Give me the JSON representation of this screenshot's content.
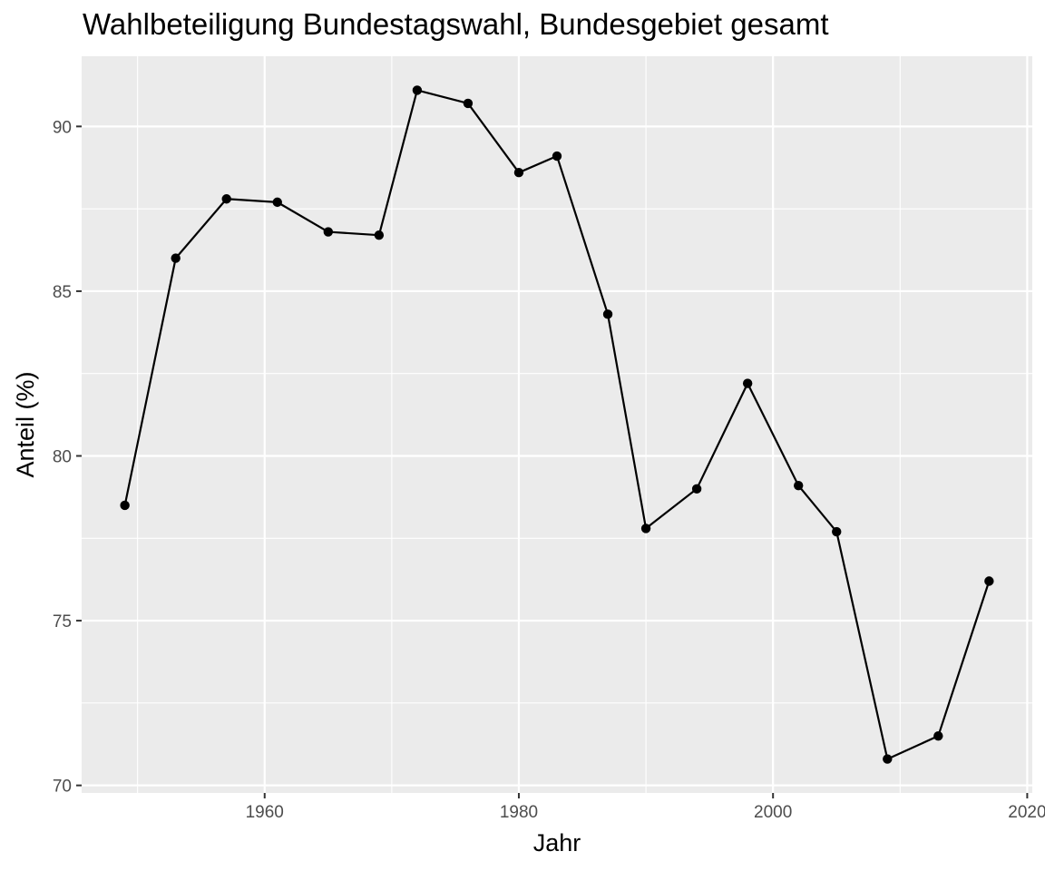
{
  "chart_data": {
    "type": "line",
    "title": "Wahlbeteiligung Bundestagswahl, Bundesgebiet gesamt",
    "xlabel": "Jahr",
    "ylabel": "Anteil (%)",
    "x": [
      1949,
      1953,
      1957,
      1961,
      1965,
      1969,
      1972,
      1976,
      1980,
      1983,
      1987,
      1990,
      1994,
      1998,
      2002,
      2005,
      2009,
      2013,
      2017
    ],
    "y": [
      78.5,
      86.0,
      87.8,
      87.7,
      86.8,
      86.7,
      91.1,
      90.7,
      88.6,
      89.1,
      84.3,
      77.8,
      79.0,
      82.2,
      79.1,
      77.7,
      70.8,
      71.5,
      76.2
    ],
    "xlim": [
      1945.6,
      2020.4
    ],
    "ylim": [
      69.77,
      92.13
    ],
    "x_ticks": [
      1960,
      1980,
      2000,
      2020
    ],
    "x_tick_labels": [
      "1960",
      "1980",
      "2000",
      "2020"
    ],
    "y_ticks": [
      70,
      75,
      80,
      85,
      90
    ],
    "y_tick_labels": [
      "70",
      "75",
      "80",
      "85",
      "90"
    ],
    "grid": true,
    "colors": {
      "panel": "#ebebeb",
      "grid": "#ffffff",
      "line": "#000000",
      "tick_text": "#4d4d4d",
      "tick_mark": "#333333"
    }
  }
}
